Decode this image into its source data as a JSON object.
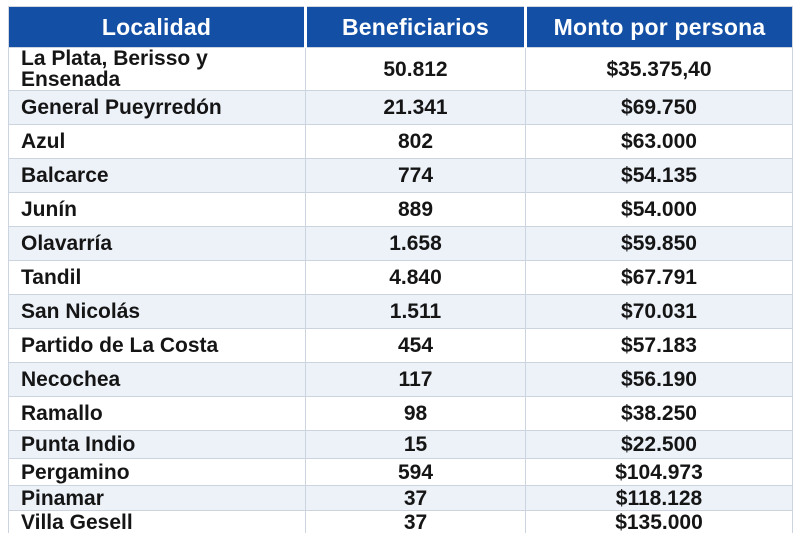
{
  "table": {
    "columns": {
      "localidad": "Localidad",
      "beneficiarios": "Beneficiarios",
      "monto": "Monto por persona"
    },
    "rows": [
      {
        "localidad": "La Plata, Berisso y Ensenada",
        "beneficiarios": "50.812",
        "monto": "$35.375,40"
      },
      {
        "localidad": "General Pueyrredón",
        "beneficiarios": "21.341",
        "monto": "$69.750"
      },
      {
        "localidad": "Azul",
        "beneficiarios": "802",
        "monto": "$63.000"
      },
      {
        "localidad": "Balcarce",
        "beneficiarios": "774",
        "monto": "$54.135"
      },
      {
        "localidad": "Junín",
        "beneficiarios": "889",
        "monto": "$54.000"
      },
      {
        "localidad": "Olavarría",
        "beneficiarios": "1.658",
        "monto": "$59.850"
      },
      {
        "localidad": "Tandil",
        "beneficiarios": "4.840",
        "monto": "$67.791"
      },
      {
        "localidad": "San Nicolás",
        "beneficiarios": "1.511",
        "monto": "$70.031"
      },
      {
        "localidad": "Partido de La Costa",
        "beneficiarios": "454",
        "monto": "$57.183"
      },
      {
        "localidad": "Necochea",
        "beneficiarios": "117",
        "monto": "$56.190"
      },
      {
        "localidad": "Ramallo",
        "beneficiarios": "98",
        "monto": "$38.250"
      },
      {
        "localidad": "Punta Indio",
        "beneficiarios": "15",
        "monto": "$22.500"
      },
      {
        "localidad": "Pergamino",
        "beneficiarios": "594",
        "monto": "$104.973"
      },
      {
        "localidad": "Pinamar",
        "beneficiarios": "37",
        "monto": "$118.128"
      },
      {
        "localidad": "Villa Gesell",
        "beneficiarios": "37",
        "monto": "$135.000"
      }
    ],
    "colors": {
      "header_bg": "#1350a5",
      "header_text": "#ffffff",
      "row_bg": "#ffffff",
      "row_alt_bg": "#edf2f9",
      "grid_line": "#ccd4e0",
      "body_text": "#151515"
    }
  }
}
